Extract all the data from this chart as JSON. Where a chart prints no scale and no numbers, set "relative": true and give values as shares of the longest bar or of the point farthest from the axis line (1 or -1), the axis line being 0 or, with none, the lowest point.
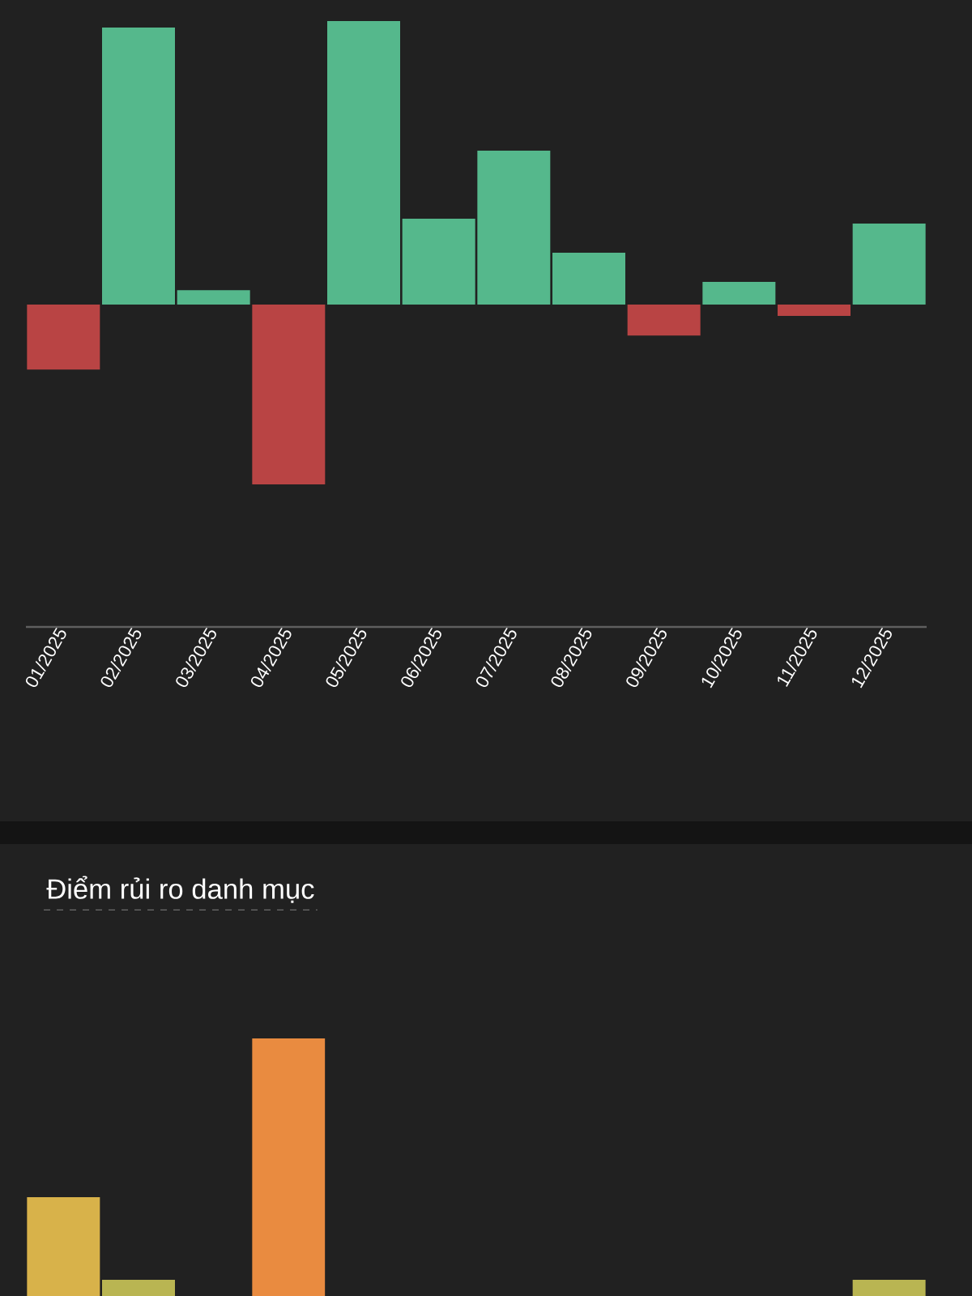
{
  "chart_data": [
    {
      "type": "bar",
      "relative": true,
      "categories": [
        "01/2025",
        "02/2025",
        "03/2025",
        "04/2025",
        "05/2025",
        "06/2025",
        "07/2025",
        "08/2025",
        "09/2025",
        "10/2025",
        "11/2025",
        "12/2025"
      ],
      "values": [
        -0.229,
        0.977,
        0.051,
        -0.634,
        1,
        0.303,
        0.543,
        0.183,
        -0.109,
        0.08,
        -0.04,
        0.286
      ],
      "colors": [
        "#b94444",
        "#55b88c",
        "#55b88c",
        "#b94444",
        "#55b88c",
        "#55b88c",
        "#55b88c",
        "#55b88c",
        "#b94444",
        "#55b88c",
        "#b94444",
        "#55b88c"
      ]
    },
    {
      "type": "bar",
      "relative": true,
      "title": "Điểm rủi ro danh mục",
      "categories": [
        null,
        null,
        null,
        null,
        null,
        null,
        null,
        null,
        null,
        null,
        null,
        null
      ],
      "values": [
        0.384,
        0.063,
        null,
        1,
        null,
        null,
        null,
        null,
        null,
        null,
        null,
        0.063
      ],
      "colors": [
        "#d8b24a",
        "#b9b552",
        null,
        "#e98b40",
        null,
        null,
        null,
        null,
        null,
        null,
        null,
        "#b9b552"
      ]
    }
  ]
}
